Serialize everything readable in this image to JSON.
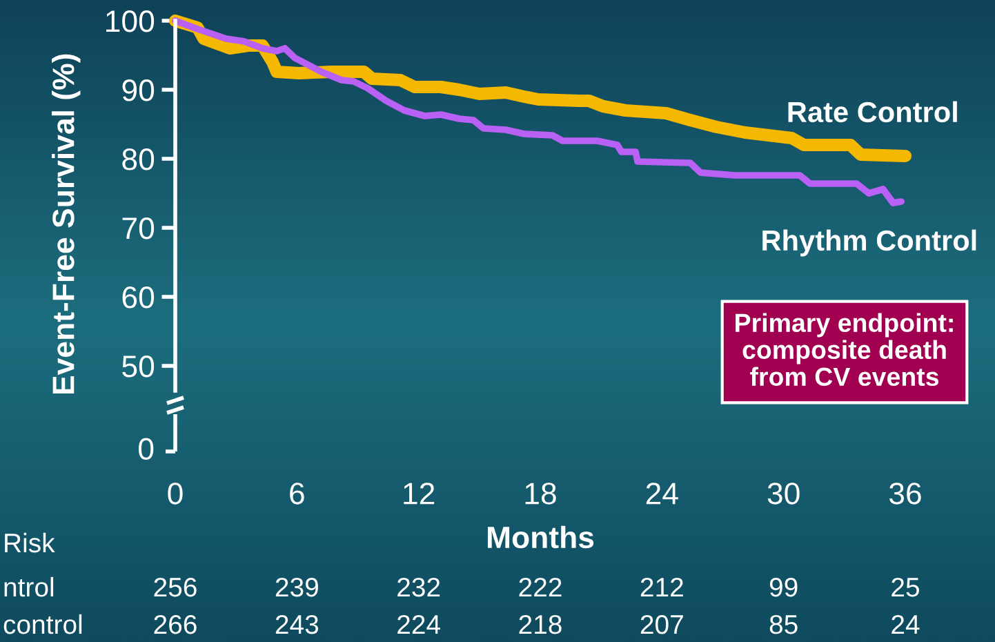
{
  "chart_data": {
    "type": "line",
    "xlabel": "Months",
    "ylabel": "Event-Free Survival (%)",
    "xlim": [
      0,
      36
    ],
    "xticks": [
      0,
      6,
      12,
      18,
      24,
      30,
      36
    ],
    "ylim": [
      46.4,
      100
    ],
    "yticks": [
      50,
      60,
      70,
      80,
      90,
      100
    ],
    "grid": false,
    "series": [
      {
        "name": "Rate Control",
        "color": "#f5b800",
        "x": [
          0,
          1.1,
          1.4,
          2.7,
          3.6,
          4.3,
          4.8,
          5.0,
          6.1,
          7.7,
          9.3,
          9.7,
          11.1,
          11.8,
          13.1,
          14.0,
          15.0,
          16.3,
          17.2,
          17.9,
          19.9,
          20.4,
          21.1,
          22.2,
          24.2,
          25.4,
          26.7,
          28.1,
          30.4,
          31.0,
          33.3,
          33.8,
          36.0
        ],
        "values": [
          100,
          99,
          97.4,
          96,
          96.4,
          96.4,
          94,
          92.6,
          92.4,
          92.6,
          92.6,
          91.6,
          91.4,
          90.4,
          90.4,
          90,
          89.4,
          89.6,
          89,
          88.6,
          88.4,
          88.4,
          87.6,
          87,
          86.6,
          85.6,
          84.6,
          83.8,
          83,
          82,
          82,
          80.6,
          80.4
        ]
      },
      {
        "name": "Rhythm Control",
        "color": "#b960f5",
        "x": [
          0,
          1.1,
          2.5,
          3.4,
          4.3,
          5.0,
          5.4,
          5.9,
          6.3,
          7.2,
          8.2,
          8.8,
          9.5,
          10.4,
          11.3,
          12.3,
          13.1,
          14.0,
          14.7,
          15.2,
          16.3,
          17.2,
          18.6,
          19.1,
          20.8,
          21.8,
          22.0,
          22.7,
          22.8,
          25.4,
          25.9,
          27.6,
          30.8,
          31.3,
          33.6,
          34.2,
          34.9,
          35.4,
          35.8
        ],
        "values": [
          100,
          98.8,
          97.4,
          97,
          96,
          95.6,
          96,
          94.6,
          94,
          92.6,
          91.4,
          91.2,
          90.2,
          88.4,
          87,
          86.2,
          86.4,
          85.8,
          85.6,
          84.4,
          84.2,
          83.6,
          83.4,
          82.6,
          82.6,
          82,
          81,
          81,
          79.6,
          79.4,
          78,
          77.6,
          77.6,
          76.4,
          76.4,
          75,
          75.6,
          73.6,
          73.8
        ]
      }
    ],
    "line_style": "solid",
    "marker": "none",
    "annotations": [
      "Primary endpoint:\ncomposite death\nfrom CV events",
      "0",
      "Risk",
      "ntrol",
      "256",
      "239",
      "232",
      "222",
      "212",
      "99",
      "25",
      "control",
      "266",
      "243",
      "224",
      "218",
      "207",
      "85",
      "24"
    ]
  }
}
